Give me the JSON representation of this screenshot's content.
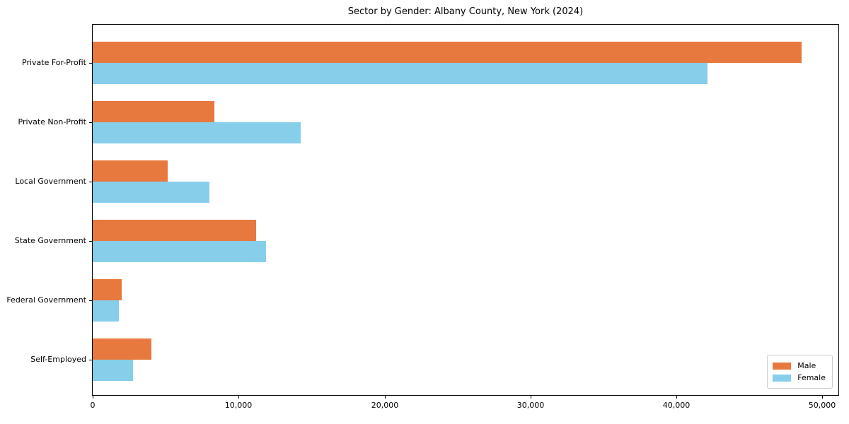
{
  "chart_data": {
    "type": "bar",
    "orientation": "horizontal",
    "title": "Sector by Gender: Albany County, New York (2024)",
    "categories": [
      "Private For-Profit",
      "Private Non-Profit",
      "Local Government",
      "State Government",
      "Federal Government",
      "Self-Employed"
    ],
    "series": [
      {
        "name": "Male",
        "color": "#e8793e",
        "values": [
          48600,
          8350,
          5150,
          11200,
          2000,
          4000
        ]
      },
      {
        "name": "Female",
        "color": "#87ceeb",
        "values": [
          42150,
          14250,
          8000,
          11900,
          1800,
          2750
        ]
      }
    ],
    "xlabel": "",
    "ylabel": "",
    "xlim": [
      0,
      51100
    ],
    "x_ticks": [
      0,
      10000,
      20000,
      30000,
      40000,
      50000
    ],
    "x_tick_labels": [
      "0",
      "10,000",
      "20,000",
      "30,000",
      "40,000",
      "50,000"
    ],
    "grid": false,
    "legend_position": "lower right",
    "background_color": "#ffffff",
    "axis_color": "#000000"
  }
}
